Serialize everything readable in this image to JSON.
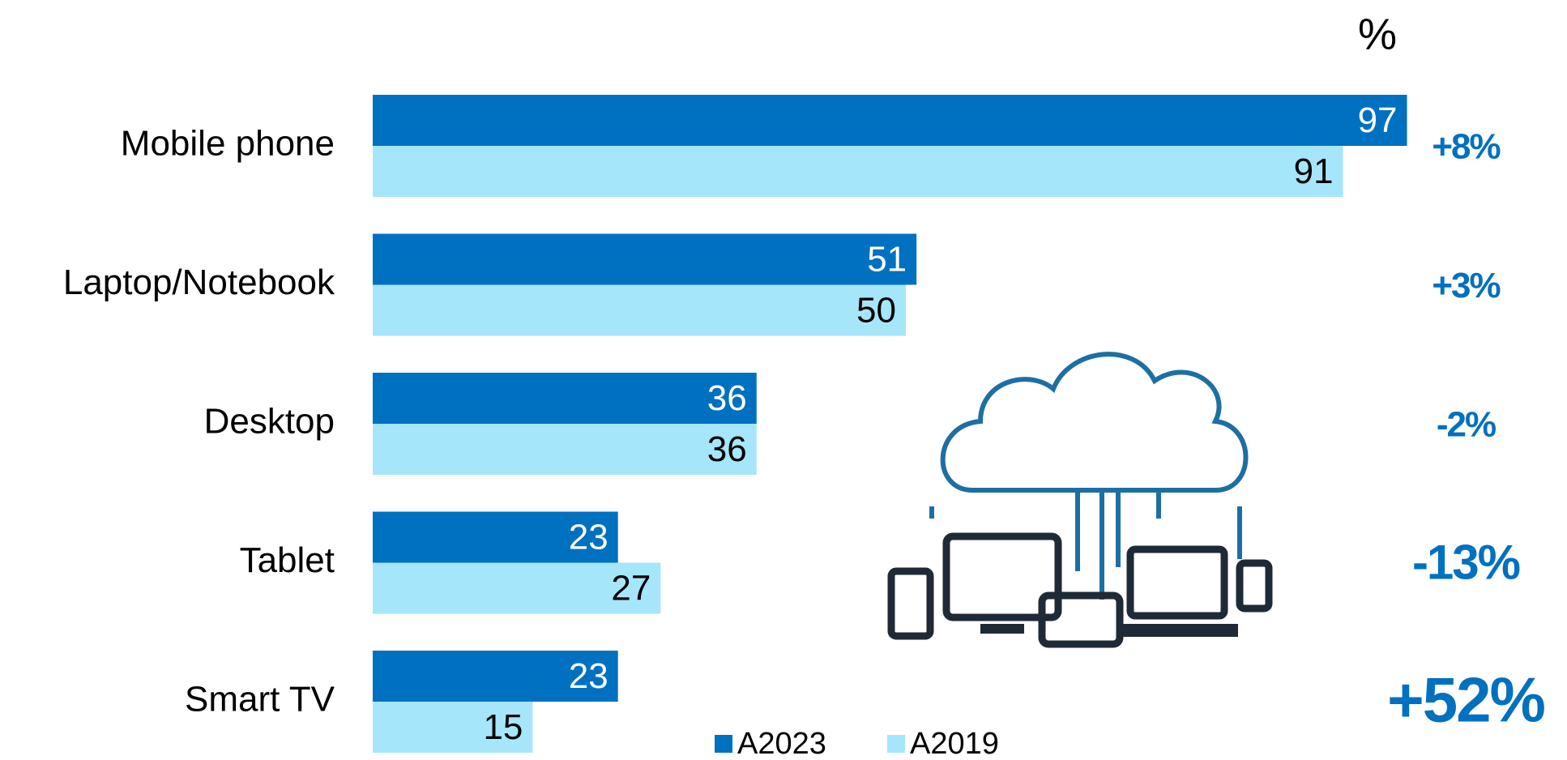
{
  "chart_data": {
    "type": "hbar",
    "unit_label": "%",
    "categories": [
      "Mobile phone",
      "Laptop/Notebook",
      "Desktop",
      "Tablet",
      "Smart TV"
    ],
    "series": [
      {
        "name": "A2023",
        "color": "#0070c0",
        "values": [
          97,
          51,
          36,
          23,
          23
        ]
      },
      {
        "name": "A2019",
        "color": "#a6e6fb",
        "values": [
          91,
          50,
          36,
          27,
          15
        ]
      }
    ],
    "xlim": [
      0,
      100
    ],
    "annotations": [
      "+8%",
      "+3%",
      "-2%",
      "-13%",
      "+52%"
    ],
    "annotation_color": "#0070c0"
  }
}
